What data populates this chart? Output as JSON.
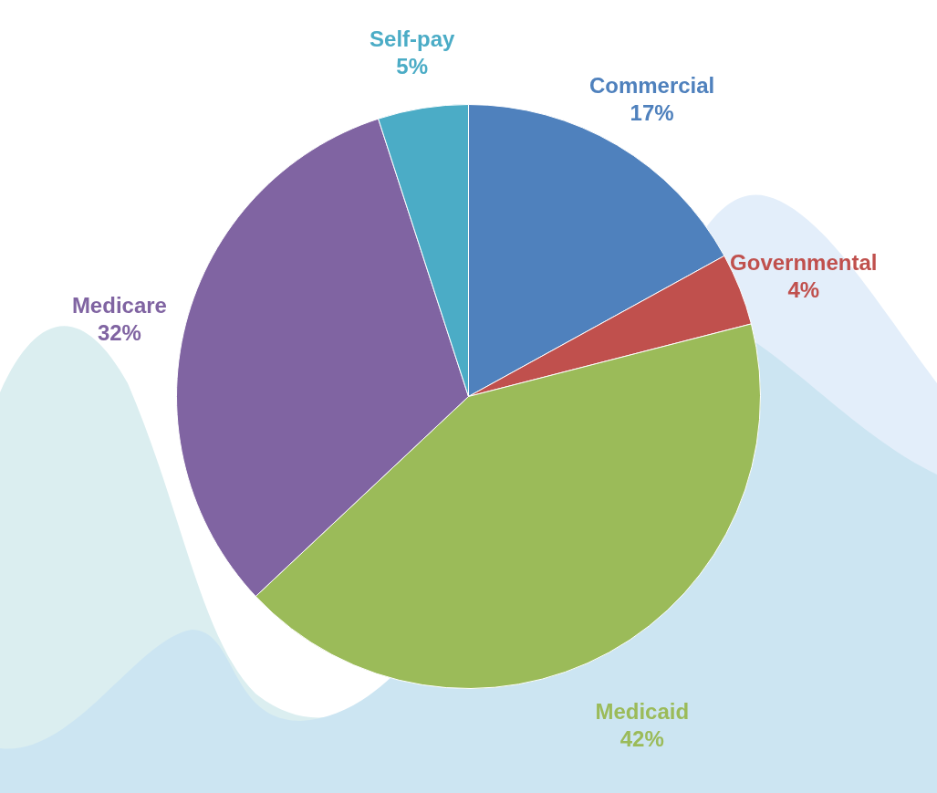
{
  "chart_data": {
    "type": "pie",
    "categories": [
      "Commercial",
      "Governmental",
      "Medicaid",
      "Medicare",
      "Self-pay"
    ],
    "values": [
      17,
      4,
      42,
      32,
      5
    ],
    "value_labels": [
      "17%",
      "4%",
      "42%",
      "32%",
      "5%"
    ],
    "colors": [
      "#4f81bd",
      "#c0504d",
      "#9bbb59",
      "#8064a2",
      "#4bacc6"
    ]
  }
}
